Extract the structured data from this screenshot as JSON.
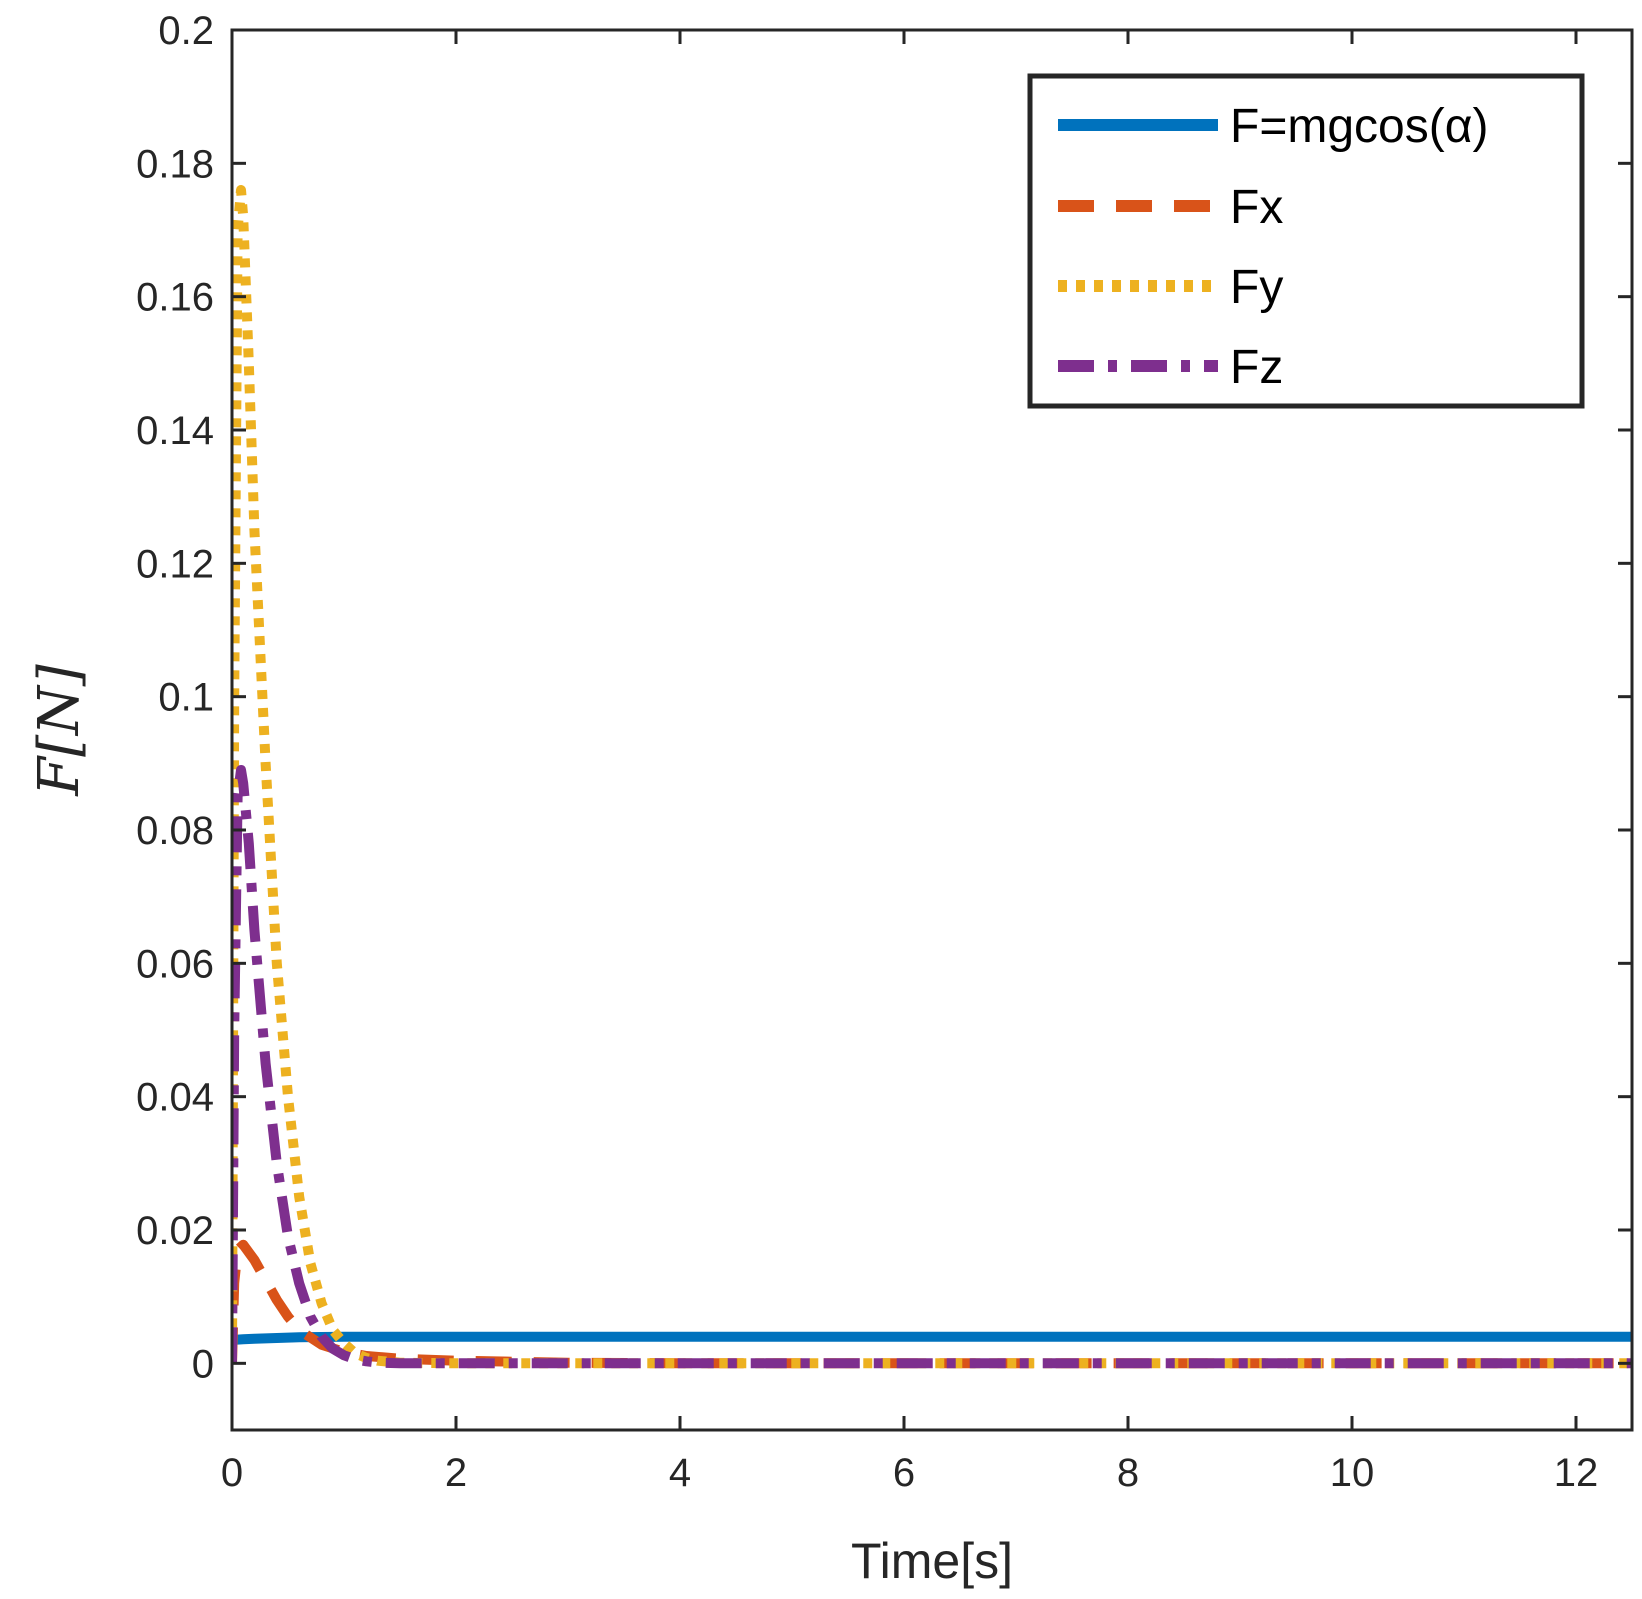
{
  "chart_data": {
    "type": "line",
    "xlabel": "Time[s]",
    "ylabel": "F[N]",
    "xlim": [
      0,
      12.5
    ],
    "ylim": [
      -0.01,
      0.2
    ],
    "xticks": [
      0,
      2,
      4,
      6,
      8,
      10,
      12
    ],
    "yticks": [
      0,
      0.02,
      0.04,
      0.06,
      0.08,
      0.1,
      0.12,
      0.14,
      0.16,
      0.18,
      0.2
    ],
    "xtick_labels": [
      "0",
      "2",
      "4",
      "6",
      "8",
      "10",
      "12"
    ],
    "ytick_labels": [
      "0",
      "0.02",
      "0.04",
      "0.06",
      "0.08",
      "0.1",
      "0.12",
      "0.14",
      "0.16",
      "0.18",
      "0.2"
    ],
    "grid": false,
    "legend_position": "top-right",
    "series": [
      {
        "name": "F=mgcos(α)",
        "color": "#0072BD",
        "style": "solid",
        "x": [
          0,
          0.1,
          0.2,
          0.4,
          0.6,
          1.0,
          2,
          4,
          6,
          8,
          10,
          12,
          12.5
        ],
        "y": [
          0.0035,
          0.0036,
          0.0037,
          0.0038,
          0.0039,
          0.004,
          0.004,
          0.004,
          0.004,
          0.004,
          0.004,
          0.004,
          0.004
        ]
      },
      {
        "name": "Fx",
        "color": "#D95319",
        "style": "dashed",
        "x": [
          0,
          0.02,
          0.05,
          0.1,
          0.2,
          0.3,
          0.4,
          0.5,
          0.6,
          0.8,
          1.0,
          1.2,
          1.5,
          2,
          3,
          4,
          6,
          8,
          10,
          12,
          12.5
        ],
        "y": [
          0,
          0.012,
          0.017,
          0.0178,
          0.0155,
          0.0125,
          0.0095,
          0.007,
          0.005,
          0.0028,
          0.0017,
          0.0011,
          0.0007,
          0.0004,
          0.0001,
          0,
          0,
          0,
          0,
          0,
          0
        ]
      },
      {
        "name": "Fy",
        "color": "#EDB120",
        "style": "dotted",
        "x": [
          0,
          0.02,
          0.05,
          0.08,
          0.1,
          0.15,
          0.2,
          0.3,
          0.4,
          0.5,
          0.6,
          0.7,
          0.8,
          0.9,
          1.0,
          1.1,
          1.2,
          1.3,
          1.5,
          2,
          3,
          4,
          6,
          8,
          10,
          12,
          12.5
        ],
        "y": [
          0,
          0.1,
          0.17,
          0.176,
          0.172,
          0.15,
          0.125,
          0.09,
          0.06,
          0.04,
          0.025,
          0.015,
          0.009,
          0.005,
          0.003,
          0.0015,
          0.0008,
          0.0004,
          0.0001,
          0,
          0,
          0,
          0,
          0,
          0,
          0,
          0
        ]
      },
      {
        "name": "Fz",
        "color": "#7E2F8E",
        "style": "dashdot",
        "x": [
          0,
          0.02,
          0.05,
          0.08,
          0.1,
          0.15,
          0.2,
          0.3,
          0.4,
          0.5,
          0.6,
          0.7,
          0.8,
          0.9,
          1.0,
          1.1,
          1.2,
          1.3,
          1.5,
          2,
          3,
          4,
          6,
          8,
          10,
          12,
          12.5
        ],
        "y": [
          0,
          0.05,
          0.085,
          0.089,
          0.087,
          0.078,
          0.065,
          0.045,
          0.03,
          0.019,
          0.012,
          0.007,
          0.004,
          0.0022,
          0.0012,
          0.0006,
          0.0003,
          0.0001,
          0,
          0,
          0,
          0,
          0,
          0,
          0,
          0,
          0
        ]
      }
    ]
  }
}
